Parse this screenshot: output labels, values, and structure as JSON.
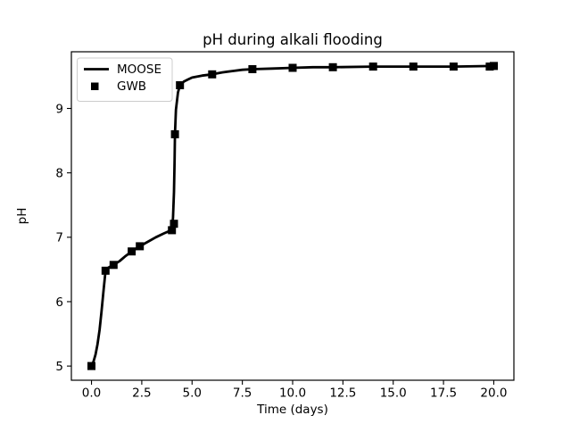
{
  "figure": {
    "title": "pH during alkali flooding",
    "background_color": "#ffffff",
    "axes_color": "#000000",
    "line_color": "#000000",
    "marker_color": "#000000"
  },
  "legend": {
    "position": "upper left",
    "entries": [
      {
        "label": "MOOSE",
        "sample": "line",
        "color": "#000000"
      },
      {
        "label": "GWB",
        "sample": "square-marker",
        "color": "#000000"
      }
    ]
  },
  "chart_data": {
    "type": "line",
    "title": "pH during alkali flooding",
    "xlabel": "Time (days)",
    "ylabel": "pH",
    "xlim": [
      -1,
      21
    ],
    "ylim": [
      4.78,
      9.88
    ],
    "xticks": [
      0.0,
      2.5,
      5.0,
      7.5,
      10.0,
      12.5,
      15.0,
      17.5,
      20.0
    ],
    "xtick_labels": [
      "0.0",
      "2.5",
      "5.0",
      "7.5",
      "10.0",
      "12.5",
      "15.0",
      "17.5",
      "20.0"
    ],
    "yticks": [
      5,
      6,
      7,
      8,
      9
    ],
    "ytick_labels": [
      "5",
      "6",
      "7",
      "8",
      "9"
    ],
    "grid": false,
    "legend_position": "upper left",
    "series": [
      {
        "name": "MOOSE",
        "plot": "line",
        "color": "#000000",
        "linewidth": 2.8,
        "x": [
          0,
          0.1,
          0.2,
          0.3,
          0.4,
          0.5,
          0.6,
          0.7,
          0.85,
          1.1,
          1.4,
          1.7,
          2.0,
          2.4,
          2.8,
          3.2,
          3.6,
          3.9,
          4.0,
          4.05,
          4.1,
          4.13,
          4.15,
          4.2,
          4.3,
          4.4,
          4.6,
          4.8,
          5.0,
          5.5,
          6.0,
          6.5,
          7.0,
          7.5,
          8.0,
          9.0,
          10.0,
          11.0,
          12.0,
          14.0,
          16.0,
          18.0,
          20.0
        ],
        "y": [
          5.0,
          5.07,
          5.18,
          5.34,
          5.56,
          5.85,
          6.18,
          6.48,
          6.53,
          6.57,
          6.63,
          6.71,
          6.78,
          6.86,
          6.93,
          7.0,
          7.06,
          7.1,
          7.14,
          7.3,
          7.7,
          8.2,
          8.6,
          8.98,
          9.25,
          9.36,
          9.42,
          9.45,
          9.48,
          9.51,
          9.53,
          9.56,
          9.58,
          9.6,
          9.61,
          9.62,
          9.63,
          9.64,
          9.64,
          9.65,
          9.65,
          9.65,
          9.66
        ]
      },
      {
        "name": "GWB",
        "plot": "scatter",
        "marker": "square",
        "color": "#000000",
        "markersize": 9,
        "x": [
          0,
          0.7,
          1.1,
          2.0,
          2.4,
          4.0,
          4.1,
          4.15,
          4.4,
          6.0,
          8.0,
          10.0,
          12.0,
          14.0,
          16.0,
          18.0,
          19.8,
          20.0
        ],
        "y": [
          5.0,
          6.48,
          6.57,
          6.78,
          6.86,
          7.11,
          7.21,
          8.6,
          9.36,
          9.53,
          9.61,
          9.63,
          9.64,
          9.65,
          9.65,
          9.65,
          9.65,
          9.66
        ]
      }
    ]
  }
}
